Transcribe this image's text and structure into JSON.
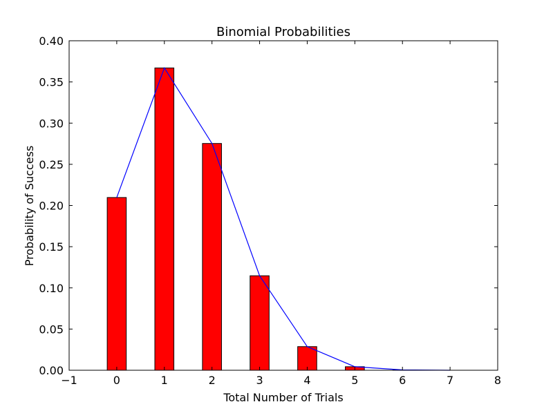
{
  "chart_data": {
    "type": "bar",
    "title": "Binomial Probabilities",
    "xlabel": "Total Number of Trials",
    "ylabel": "Probability of Success",
    "xlim": [
      -1,
      8
    ],
    "ylim": [
      0,
      0.4
    ],
    "xticks": [
      -1,
      0,
      1,
      2,
      3,
      4,
      5,
      6,
      7,
      8
    ],
    "xtick_labels": [
      "−1",
      "0",
      "1",
      "2",
      "3",
      "4",
      "5",
      "6",
      "7",
      "8"
    ],
    "yticks": [
      0.0,
      0.05,
      0.1,
      0.15,
      0.2,
      0.25,
      0.3,
      0.35,
      0.4
    ],
    "ytick_labels": [
      "0.00",
      "0.05",
      "0.10",
      "0.15",
      "0.20",
      "0.25",
      "0.30",
      "0.35",
      "0.40"
    ],
    "x": [
      0,
      1,
      2,
      3,
      4,
      5,
      6,
      7
    ],
    "values": [
      0.2097,
      0.367,
      0.2753,
      0.1147,
      0.0287,
      0.0043,
      0.0004,
      0.0
    ],
    "bar_width": 0.4,
    "grid": false,
    "legend": "none",
    "bar_color": "#ff0000",
    "bar_edge_color": "#000000",
    "line_color": "#0000ff"
  }
}
